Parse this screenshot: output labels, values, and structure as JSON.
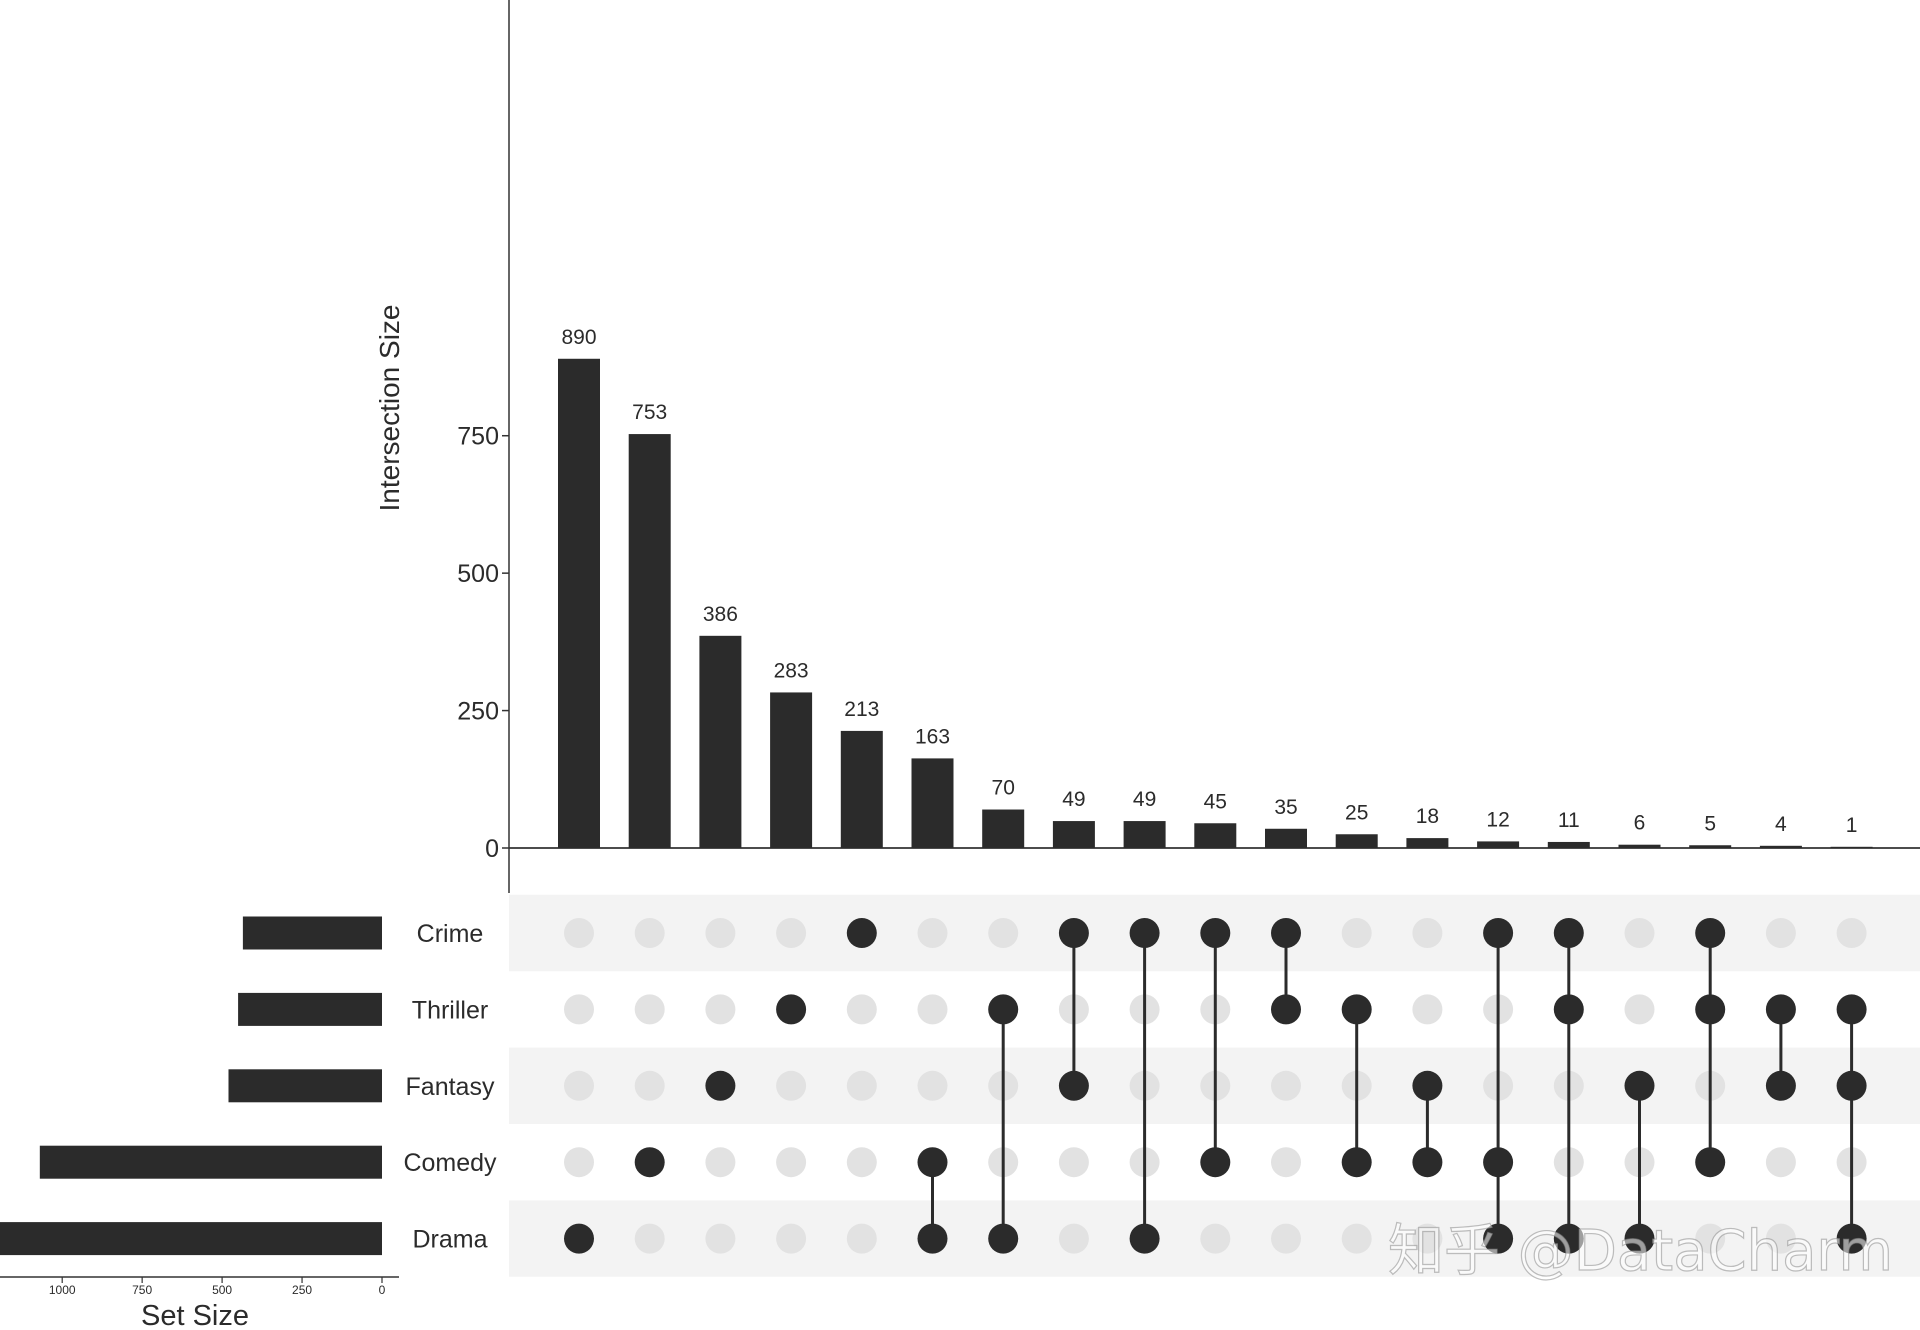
{
  "chart_data": {
    "type": "bar",
    "subtype": "upset",
    "intersection_axis": {
      "ylabel": "Intersection Size",
      "ticks": [
        0,
        250,
        500,
        750
      ],
      "ylim": [
        0,
        900
      ]
    },
    "set_size_axis": {
      "xlabel": "Set Size",
      "ticks": [
        1000,
        750,
        500,
        250,
        0
      ],
      "xlim": [
        0,
        1225
      ],
      "direction": "reversed"
    },
    "sets": [
      {
        "name": "Crime",
        "size": 435
      },
      {
        "name": "Thriller",
        "size": 450
      },
      {
        "name": "Fantasy",
        "size": 480
      },
      {
        "name": "Comedy",
        "size": 1070
      },
      {
        "name": "Drama",
        "size": 1255
      }
    ],
    "intersections": [
      {
        "value": 890,
        "label": "890",
        "members": [
          "Drama"
        ]
      },
      {
        "value": 753,
        "label": "753",
        "members": [
          "Comedy"
        ]
      },
      {
        "value": 386,
        "label": "386",
        "members": [
          "Fantasy"
        ]
      },
      {
        "value": 283,
        "label": "283",
        "members": [
          "Thriller"
        ]
      },
      {
        "value": 213,
        "label": "213",
        "members": [
          "Crime"
        ]
      },
      {
        "value": 163,
        "label": "163",
        "members": [
          "Comedy",
          "Drama"
        ]
      },
      {
        "value": 70,
        "label": "70",
        "members": [
          "Thriller",
          "Drama"
        ]
      },
      {
        "value": 49,
        "label": "49",
        "members": [
          "Crime",
          "Fantasy"
        ]
      },
      {
        "value": 49,
        "label": "49",
        "members": [
          "Crime",
          "Drama"
        ]
      },
      {
        "value": 45,
        "label": "45",
        "members": [
          "Crime",
          "Comedy"
        ]
      },
      {
        "value": 35,
        "label": "35",
        "members": [
          "Crime",
          "Thriller"
        ]
      },
      {
        "value": 25,
        "label": "25",
        "members": [
          "Thriller",
          "Comedy"
        ]
      },
      {
        "value": 18,
        "label": "18",
        "members": [
          "Fantasy",
          "Comedy"
        ]
      },
      {
        "value": 12,
        "label": "12",
        "members": [
          "Crime",
          "Comedy",
          "Drama"
        ]
      },
      {
        "value": 11,
        "label": "11",
        "members": [
          "Crime",
          "Thriller",
          "Drama"
        ]
      },
      {
        "value": 6,
        "label": "6",
        "members": [
          "Fantasy",
          "Drama"
        ]
      },
      {
        "value": 5,
        "label": "5",
        "members": [
          "Crime",
          "Thriller",
          "Comedy"
        ]
      },
      {
        "value": 4,
        "label": "4",
        "members": [
          "Thriller",
          "Fantasy"
        ]
      },
      {
        "value": 1,
        "label": "1",
        "members": [
          "Thriller",
          "Fantasy",
          "Drama"
        ]
      }
    ]
  },
  "watermark": "知乎 @DataCharm",
  "colors": {
    "bar": "#2b2b2b",
    "dot_active": "#2b2b2b",
    "dot_inactive": "#e2e2e2",
    "stripe": "#f3f3f3",
    "axis": "#333333"
  }
}
